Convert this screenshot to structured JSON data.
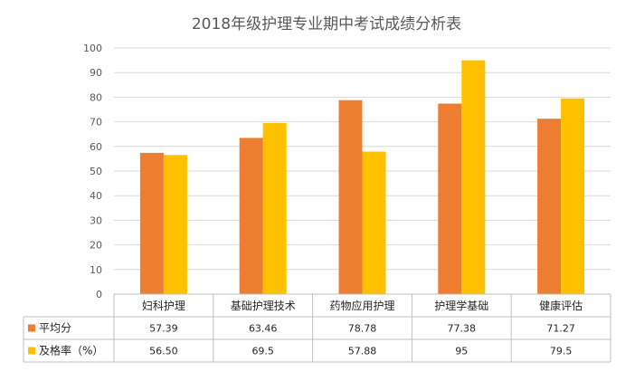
{
  "chart_data": {
    "type": "bar",
    "title": "2018年级护理专业期中考试成绩分析表",
    "categories": [
      "妇科护理",
      "基础护理技术",
      "药物应用护理",
      "护理学基础",
      "健康评估"
    ],
    "series": [
      {
        "name": "平均分",
        "color": "#ED7D31",
        "values": [
          57.39,
          63.46,
          78.78,
          77.38,
          71.27
        ],
        "labels": [
          "57.39",
          "63.46",
          "78.78",
          "77.38",
          "71.27"
        ]
      },
      {
        "name": "及格率（%）",
        "color": "#FFC000",
        "values": [
          56.5,
          69.5,
          57.88,
          95,
          79.5
        ],
        "labels": [
          "56.50",
          "69.5",
          "57.88",
          "95",
          "79.5"
        ]
      }
    ],
    "ylim": [
      0,
      100
    ],
    "yticks": [
      "0",
      "10",
      "20",
      "30",
      "40",
      "50",
      "60",
      "70",
      "80",
      "90",
      "100"
    ],
    "grid": true,
    "legend": "data-table"
  }
}
